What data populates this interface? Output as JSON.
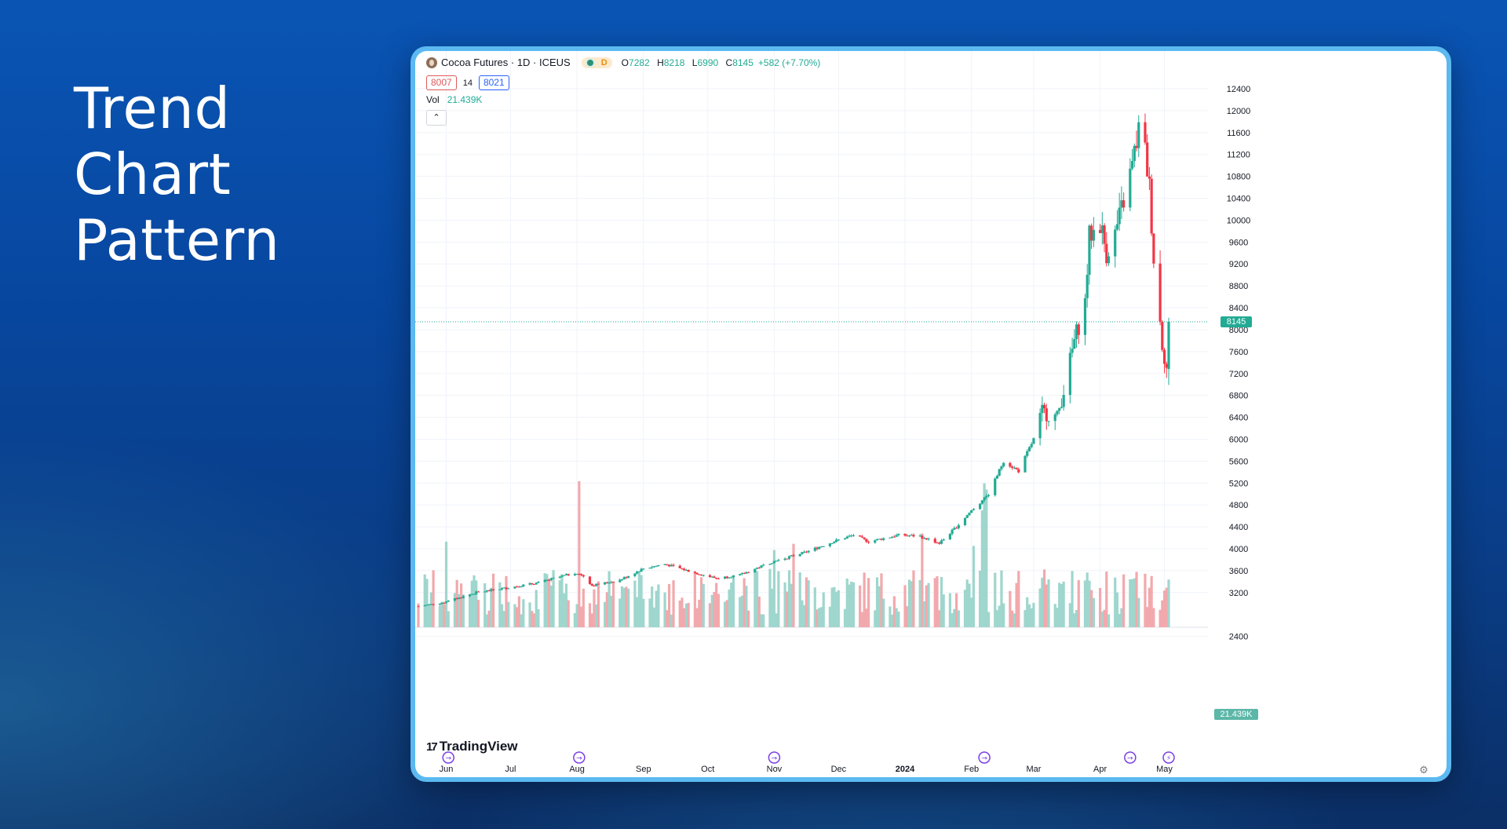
{
  "headline": [
    "Trend",
    "Chart",
    "Pattern"
  ],
  "legend": {
    "symbol": "Cocoa Futures · 1D · ICEUS",
    "market_status": "D",
    "open_key": "O",
    "open": "7282",
    "high_key": "H",
    "high": "8218",
    "low_key": "L",
    "low": "6990",
    "close_key": "C",
    "close": "8145",
    "change": "+582 (+7.70%)",
    "bid": "8007",
    "spread": "14",
    "ask": "8021",
    "volume_label": "Vol",
    "volume_value": "21.439K"
  },
  "branding": "TradingView",
  "last_price_label": "8145",
  "volume_last_label": "21.439K",
  "colors": {
    "up": "#22ab94",
    "down": "#f23645",
    "up_vol": "#9fd6cd",
    "down_vol": "#f2a9ad",
    "axis_text": "#131722",
    "grid": "#f0f3fa"
  },
  "icons": {
    "collapse": "chevron-up-icon",
    "settings": "gear-icon",
    "event": "dividend-event-icon",
    "event_last": "lightning-event-icon"
  },
  "chart_data": {
    "type": "candlestick",
    "y_ticks": [
      "12400",
      "12000",
      "11600",
      "11200",
      "10800",
      "10400",
      "10000",
      "9600",
      "9200",
      "8800",
      "8400",
      "8000",
      "7600",
      "7200",
      "6800",
      "6400",
      "6000",
      "5600",
      "5200",
      "4800",
      "4400",
      "4000",
      "3600",
      "3200",
      "2400"
    ],
    "ylim": [
      2400,
      12400
    ],
    "x_ticks": [
      "Jun",
      "Jul",
      "Aug",
      "Sep",
      "Oct",
      "Nov",
      "Dec",
      "2024",
      "Feb",
      "Mar",
      "Apr",
      "May"
    ],
    "x_range": [
      "2023-05-19",
      "2024-05-03"
    ],
    "event_markers": [
      "2023-06-02",
      "2023-08-02",
      "2023-11-01",
      "2024-02-07",
      "2024-04-15",
      "2024-05-03"
    ],
    "anchors": [
      [
        "2023-05-19",
        2950
      ],
      [
        "2023-05-31",
        3020
      ],
      [
        "2023-06-15",
        3200
      ],
      [
        "2023-06-30",
        3290
      ],
      [
        "2023-07-14",
        3380
      ],
      [
        "2023-07-31",
        3560
      ],
      [
        "2023-08-04",
        3500
      ],
      [
        "2023-08-08",
        3330
      ],
      [
        "2023-08-21",
        3430
      ],
      [
        "2023-09-01",
        3640
      ],
      [
        "2023-09-11",
        3720
      ],
      [
        "2023-09-25",
        3560
      ],
      [
        "2023-10-05",
        3460
      ],
      [
        "2023-10-16",
        3520
      ],
      [
        "2023-10-31",
        3760
      ],
      [
        "2023-11-15",
        3930
      ],
      [
        "2023-11-30",
        4150
      ],
      [
        "2023-12-08",
        4250
      ],
      [
        "2023-12-15",
        4130
      ],
      [
        "2023-12-29",
        4250
      ],
      [
        "2024-01-08",
        4230
      ],
      [
        "2024-01-17",
        4100
      ],
      [
        "2024-01-25",
        4400
      ],
      [
        "2024-02-01",
        4700
      ],
      [
        "2024-02-09",
        5000
      ],
      [
        "2024-02-16",
        5600
      ],
      [
        "2024-02-23",
        5420
      ],
      [
        "2024-03-01",
        6000
      ],
      [
        "2024-03-05",
        6500
      ],
      [
        "2024-03-12",
        6400
      ],
      [
        "2024-03-15",
        6900
      ],
      [
        "2024-03-20",
        7800
      ],
      [
        "2024-03-25",
        8500
      ],
      [
        "2024-03-27",
        9700
      ],
      [
        "2024-04-01",
        9950
      ],
      [
        "2024-04-04",
        9400
      ],
      [
        "2024-04-08",
        9750
      ],
      [
        "2024-04-12",
        10350
      ],
      [
        "2024-04-16",
        11000
      ],
      [
        "2024-04-19",
        11650
      ],
      [
        "2024-04-22",
        11250
      ],
      [
        "2024-04-24",
        10600
      ],
      [
        "2024-04-26",
        9300
      ],
      [
        "2024-04-30",
        7750
      ],
      [
        "2024-05-02",
        7300
      ],
      [
        "2024-05-03",
        8145
      ]
    ],
    "volume_ylim": [
      0,
      7
    ],
    "volume_spikes": [
      [
        "2023-06-01",
        4.1
      ],
      [
        "2023-08-02",
        7.0
      ],
      [
        "2023-11-01",
        3.7
      ],
      [
        "2023-11-10",
        4.0
      ],
      [
        "2024-01-09",
        4.5
      ],
      [
        "2024-02-02",
        3.9
      ],
      [
        "2024-02-06",
        5.6
      ],
      [
        "2024-02-07",
        6.9
      ],
      [
        "2024-02-08",
        6.6
      ]
    ]
  }
}
